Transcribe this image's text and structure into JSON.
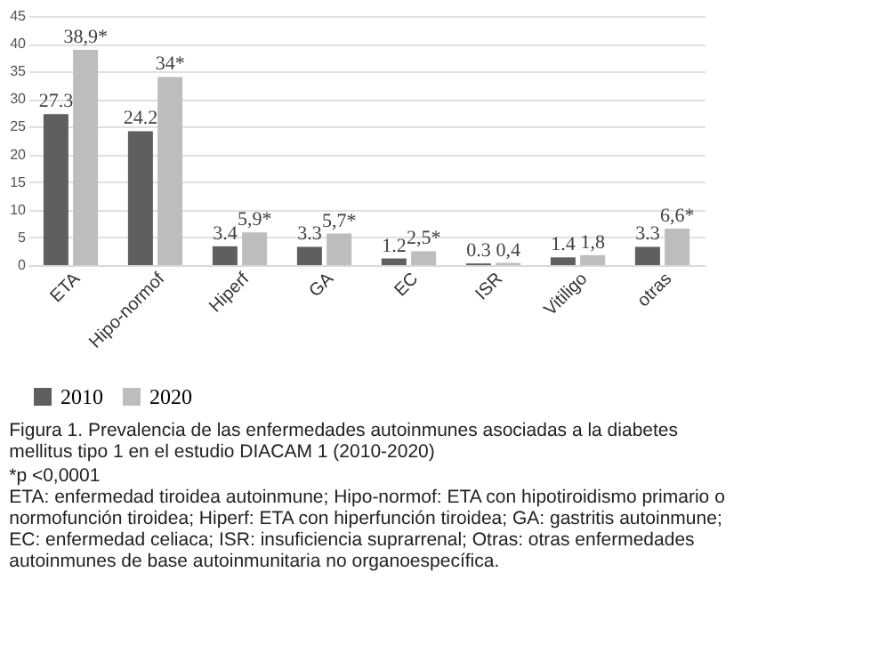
{
  "chart_data": {
    "type": "bar",
    "title": "Figura 1. Prevalencia de las enfermedades autoinmunes asociadas a la diabetes mellitus tipo 1 en el estudio DIACAM 1 (2010-2020)",
    "categories": [
      "ETA",
      "Hipo-normof",
      "Hiperf",
      "GA",
      "EC",
      "ISR",
      "Vitiligo",
      "otras"
    ],
    "series": [
      {
        "name": "2010",
        "color": "#5f5f5f",
        "values": [
          27.3,
          24.2,
          3.4,
          3.3,
          1.2,
          0.3,
          1.4,
          3.3
        ],
        "value_labels": [
          "27.3",
          "24.2",
          "3.4",
          "3.3",
          "1.2",
          "0.3",
          "1.4",
          "3.3"
        ]
      },
      {
        "name": "2020",
        "color": "#bdbdbd",
        "values": [
          38.9,
          34,
          5.9,
          5.7,
          2.5,
          0.4,
          1.8,
          6.6
        ],
        "value_labels": [
          "38,9*",
          "34*",
          "5,9*",
          "5,7*",
          "2,5*",
          "0,4",
          "1,8",
          "6,6*"
        ]
      }
    ],
    "ylim": [
      0,
      45
    ],
    "yticks": [
      0,
      5,
      10,
      15,
      20,
      25,
      30,
      35,
      40,
      45
    ],
    "grid": "y",
    "legend": "bottom",
    "annotations": [
      "*p <0,0001",
      "ETA: enfermedad tiroidea autoinmune; Hipo-normof: ETA con hipotiroidismo primario o normofunción tiroidea; Hiperf: ETA con hiperfunción tiroidea; GA: gastritis autoinmune; EC: enfermedad celiaca; ISR: insuficiencia suprarrenal; Otras: otras enfermedades autoinmunes de base autoinmunitaria no organoespecífica."
    ]
  }
}
